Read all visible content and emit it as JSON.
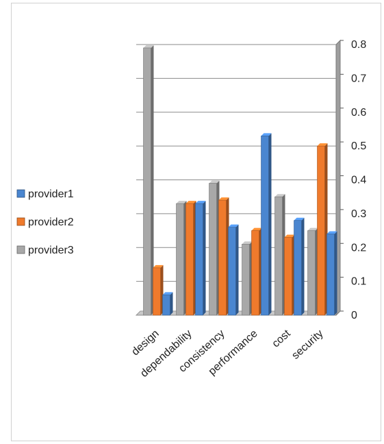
{
  "chart_data": {
    "type": "bar",
    "title": "",
    "xlabel": "",
    "ylabel": "",
    "categories": [
      "design",
      "dependability",
      "consistency",
      "performance",
      "cost",
      "security"
    ],
    "series": [
      {
        "name": "provider1",
        "color": "#4a86d0",
        "values": [
          0.06,
          0.33,
          0.26,
          0.53,
          0.28,
          0.24
        ]
      },
      {
        "name": "provider2",
        "color": "#ef7a2c",
        "values": [
          0.14,
          0.33,
          0.34,
          0.25,
          0.23,
          0.5
        ]
      },
      {
        "name": "provider3",
        "color": "#a8a8a8",
        "values": [
          0.79,
          0.33,
          0.39,
          0.21,
          0.35,
          0.25
        ]
      }
    ],
    "draw_order": [
      "provider3",
      "provider2",
      "provider1"
    ],
    "yticks": [
      "0",
      "0.1",
      "0.2",
      "0.3",
      "0.4",
      "0.5",
      "0.6",
      "0.7",
      "0.8"
    ],
    "ylim": [
      0,
      0.8
    ],
    "yaxis_position": "right",
    "grid": true,
    "legend_position": "left"
  }
}
